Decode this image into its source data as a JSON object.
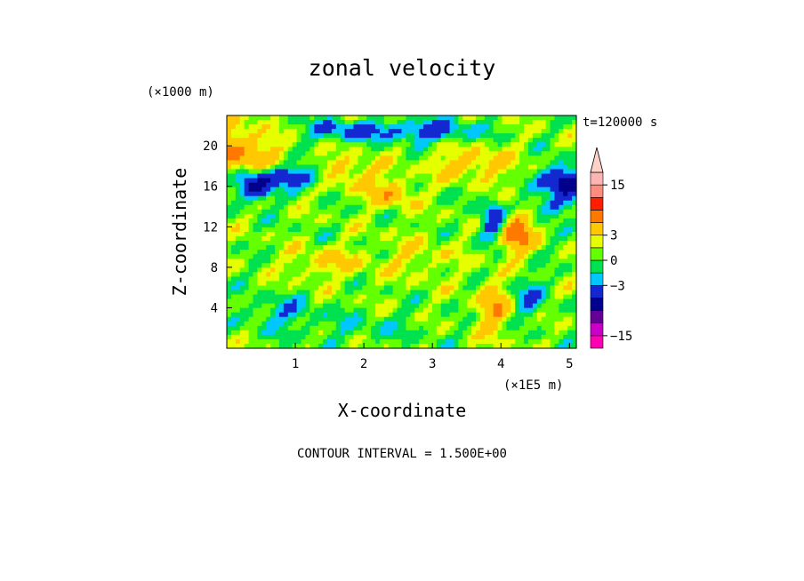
{
  "chart_data": {
    "type": "heatmap",
    "title": "zonal velocity",
    "xlabel": "X-coordinate",
    "ylabel": "Z-coordinate",
    "x_unit": "(×1E5 m)",
    "y_unit": "(×1000 m)",
    "time_label": "t=120000 s",
    "footer": "CONTOUR INTERVAL = 1.500E+00",
    "xlim": [
      0,
      5.1
    ],
    "ylim": [
      0,
      23
    ],
    "x_ticks": [
      "1",
      "2",
      "3",
      "4",
      "5"
    ],
    "y_ticks": [
      "4",
      "8",
      "12",
      "16",
      "20"
    ],
    "colorbar": {
      "ticks": [
        "15",
        "3",
        "0",
        "-3",
        "-15"
      ],
      "levels": [
        -18,
        -15,
        -12,
        -9,
        -6,
        -3,
        -1.5,
        0,
        1.5,
        3,
        6,
        9,
        12,
        15,
        18
      ],
      "colors": [
        "#ff00b4",
        "#c800c8",
        "#640096",
        "#00008c",
        "#1428d2",
        "#00c8ff",
        "#00e150",
        "#64ff00",
        "#e6ff00",
        "#ffc800",
        "#ff7800",
        "#ff1e00",
        "#ff8c7d",
        "#ffb4b4",
        "#ffd2c8"
      ]
    },
    "grid": false,
    "legend": "right"
  }
}
